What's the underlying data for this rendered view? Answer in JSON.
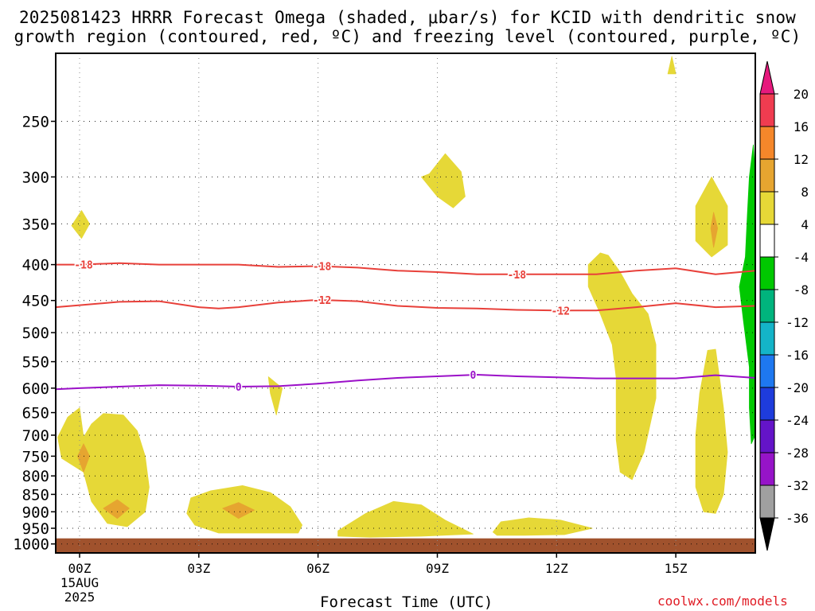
{
  "title_line1": "2025081423 HRRR Forecast Omega (shaded, μbar/s) for KCID with dendritic snow",
  "title_line2": "growth region (contoured, red, ºC) and freezing level (contoured, purple, ºC)",
  "credit": "coolwx.com/models",
  "chart_data": {
    "type": "heatmap",
    "xlabel": "Forecast Time (UTC)",
    "ylabel": "",
    "x_ticks": [
      "00Z",
      "03Z",
      "06Z",
      "09Z",
      "12Z",
      "15Z"
    ],
    "x_tick_hours": [
      0,
      3,
      6,
      9,
      12,
      15
    ],
    "x_date_label": [
      "15AUG",
      "2025"
    ],
    "xlim_hours": [
      -0.6,
      17.0
    ],
    "y_ticks": [
      250,
      300,
      350,
      400,
      450,
      500,
      550,
      600,
      650,
      700,
      750,
      800,
      850,
      900,
      950,
      1000
    ],
    "y_scale": "log",
    "y_reversed": true,
    "ylim_hpa": [
      200,
      1030
    ],
    "grid": "dotted",
    "ground_color": "#a0522d",
    "colorbar": {
      "labels": [
        "20",
        "16",
        "12",
        "8",
        "4",
        "-4",
        "-8",
        "-12",
        "-16",
        "-20",
        "-24",
        "-28",
        "-32",
        "-36"
      ],
      "colors": [
        "#f03c50",
        "#f5872a",
        "#e6a530",
        "#e6d837",
        "#ffffff",
        "#00c800",
        "#00b47d",
        "#14b4c8",
        "#1e78f0",
        "#1e3cdc",
        "#6414c8",
        "#9614c8",
        "#a0a0a0"
      ],
      "top_arrow_color": "#e6197d",
      "bottom_arrow_color": "#000000"
    },
    "contours": [
      {
        "value": -18,
        "label": "-18",
        "color": "#e8403a",
        "points": [
          [
            -0.6,
            400
          ],
          [
            0,
            400
          ],
          [
            1,
            398
          ],
          [
            2,
            400
          ],
          [
            3,
            400
          ],
          [
            4,
            400
          ],
          [
            5,
            403
          ],
          [
            6,
            402
          ],
          [
            7,
            404
          ],
          [
            8,
            408
          ],
          [
            9,
            410
          ],
          [
            10,
            413
          ],
          [
            11,
            413
          ],
          [
            12,
            413
          ],
          [
            13,
            413
          ],
          [
            14,
            408
          ],
          [
            15,
            405
          ],
          [
            16,
            413
          ],
          [
            17,
            408
          ]
        ],
        "label_hours": [
          0.1,
          6.1,
          11.0
        ]
      },
      {
        "value": -12,
        "label": "-12",
        "color": "#e8403a",
        "points": [
          [
            -0.6,
            460
          ],
          [
            0,
            457
          ],
          [
            1,
            452
          ],
          [
            2,
            451
          ],
          [
            3,
            460
          ],
          [
            3.5,
            462
          ],
          [
            4,
            460
          ],
          [
            5,
            453
          ],
          [
            6,
            449
          ],
          [
            7,
            451
          ],
          [
            8,
            458
          ],
          [
            9,
            461
          ],
          [
            10,
            462
          ],
          [
            11,
            464
          ],
          [
            12,
            465
          ],
          [
            13,
            465
          ],
          [
            14,
            460
          ],
          [
            15,
            454
          ],
          [
            16,
            460
          ],
          [
            17,
            458
          ]
        ],
        "label_hours": [
          6.1,
          12.1
        ]
      },
      {
        "value": 0,
        "label": "0",
        "color": "#9b10c8",
        "points": [
          [
            -0.6,
            602
          ],
          [
            0,
            600
          ],
          [
            1,
            597
          ],
          [
            2,
            594
          ],
          [
            3,
            595
          ],
          [
            4,
            597
          ],
          [
            5,
            596
          ],
          [
            6,
            591
          ],
          [
            7,
            585
          ],
          [
            8,
            580
          ],
          [
            9,
            577
          ],
          [
            10,
            574
          ],
          [
            11,
            577
          ],
          [
            12,
            579
          ],
          [
            13,
            581
          ],
          [
            14,
            581
          ],
          [
            15,
            581
          ],
          [
            16,
            575
          ],
          [
            17,
            580
          ]
        ],
        "label_hours": [
          4.0,
          9.9
        ]
      }
    ],
    "omega_regions": [
      {
        "value_range": [
          4,
          8
        ],
        "color": "#e6d837",
        "points": [
          [
            0.1,
            705
          ],
          [
            0.3,
            675
          ],
          [
            0.6,
            652
          ],
          [
            1.1,
            655
          ],
          [
            1.45,
            690
          ],
          [
            1.65,
            750
          ],
          [
            1.75,
            830
          ],
          [
            1.65,
            900
          ],
          [
            1.2,
            945
          ],
          [
            0.7,
            935
          ],
          [
            0.3,
            870
          ],
          [
            0.1,
            790
          ],
          [
            -0.45,
            755
          ],
          [
            -0.55,
            705
          ],
          [
            -0.3,
            660
          ],
          [
            0,
            640
          ]
        ]
      },
      {
        "value_range": [
          8,
          12
        ],
        "color": "#e6a530",
        "points": [
          [
            0.1,
            720
          ],
          [
            0.25,
            750
          ],
          [
            0.1,
            790
          ],
          [
            -0.05,
            750
          ]
        ]
      },
      {
        "value_range": [
          8,
          12
        ],
        "color": "#e6a530",
        "points": [
          [
            0.6,
            890
          ],
          [
            0.95,
            865
          ],
          [
            1.25,
            890
          ],
          [
            0.95,
            920
          ]
        ]
      },
      {
        "value_range": [
          4,
          8
        ],
        "color": "#e6d837",
        "points": [
          [
            -0.2,
            352
          ],
          [
            0.05,
            335
          ],
          [
            0.25,
            350
          ],
          [
            0.05,
            367
          ]
        ]
      },
      {
        "value_range": [
          4,
          8
        ],
        "color": "#e6d837",
        "points": [
          [
            2.8,
            860
          ],
          [
            3.3,
            840
          ],
          [
            4.1,
            826
          ],
          [
            4.8,
            845
          ],
          [
            5.3,
            885
          ],
          [
            5.6,
            940
          ],
          [
            5.5,
            965
          ],
          [
            4.5,
            965
          ],
          [
            3.5,
            965
          ],
          [
            2.9,
            940
          ],
          [
            2.7,
            905
          ]
        ]
      },
      {
        "value_range": [
          8,
          12
        ],
        "color": "#e6a530",
        "points": [
          [
            3.6,
            890
          ],
          [
            4.0,
            873
          ],
          [
            4.4,
            895
          ],
          [
            4.0,
            920
          ]
        ]
      },
      {
        "value_range": [
          4,
          8
        ],
        "color": "#e6d837",
        "points": [
          [
            4.75,
            578
          ],
          [
            5.1,
            600
          ],
          [
            4.95,
            655
          ],
          [
            4.8,
            610
          ]
        ]
      },
      {
        "value_range": [
          4,
          8
        ],
        "color": "#e6d837",
        "points": [
          [
            6.5,
            958
          ],
          [
            7.2,
            905
          ],
          [
            7.9,
            870
          ],
          [
            8.6,
            880
          ],
          [
            9.2,
            925
          ],
          [
            9.9,
            968
          ],
          [
            8.6,
            975
          ],
          [
            7.3,
            978
          ],
          [
            6.5,
            975
          ]
        ]
      },
      {
        "value_range": [
          4,
          8
        ],
        "color": "#e6d837",
        "points": [
          [
            10.4,
            962
          ],
          [
            10.6,
            930
          ],
          [
            11.3,
            918
          ],
          [
            12.1,
            925
          ],
          [
            12.9,
            950
          ],
          [
            12.2,
            970
          ],
          [
            11.2,
            972
          ],
          [
            10.5,
            972
          ]
        ]
      },
      {
        "value_range": [
          4,
          8
        ],
        "color": "#e6d837",
        "points": [
          [
            8.8,
            297
          ],
          [
            9.2,
            278
          ],
          [
            9.6,
            295
          ],
          [
            9.7,
            320
          ],
          [
            9.4,
            332
          ],
          [
            9.0,
            320
          ],
          [
            8.6,
            300
          ]
        ]
      },
      {
        "value_range": [
          4,
          8
        ],
        "color": "#e6d837",
        "points": [
          [
            13.1,
            385
          ],
          [
            13.3,
            388
          ],
          [
            13.6,
            410
          ],
          [
            13.9,
            440
          ],
          [
            14.3,
            470
          ],
          [
            14.5,
            520
          ],
          [
            14.5,
            620
          ],
          [
            14.2,
            740
          ],
          [
            13.9,
            810
          ],
          [
            13.6,
            790
          ],
          [
            13.5,
            710
          ],
          [
            13.5,
            580
          ],
          [
            13.4,
            520
          ],
          [
            13.1,
            470
          ],
          [
            12.8,
            430
          ],
          [
            12.8,
            400
          ]
        ]
      },
      {
        "value_range": [
          4,
          8
        ],
        "color": "#e6d837",
        "points": [
          [
            15.9,
            300
          ],
          [
            16.3,
            330
          ],
          [
            16.3,
            375
          ],
          [
            15.9,
            390
          ],
          [
            15.5,
            370
          ],
          [
            15.5,
            330
          ]
        ]
      },
      {
        "value_range": [
          8,
          12
        ],
        "color": "#e6a530",
        "points": [
          [
            15.95,
            337
          ],
          [
            16.05,
            355
          ],
          [
            15.95,
            378
          ],
          [
            15.88,
            355
          ]
        ]
      },
      {
        "value_range": [
          4,
          8
        ],
        "color": "#e6d837",
        "points": [
          [
            15.8,
            530
          ],
          [
            16.0,
            528
          ],
          [
            16.1,
            580
          ],
          [
            16.2,
            640
          ],
          [
            16.3,
            740
          ],
          [
            16.2,
            850
          ],
          [
            16.0,
            905
          ],
          [
            15.7,
            900
          ],
          [
            15.5,
            830
          ],
          [
            15.5,
            700
          ],
          [
            15.6,
            610
          ]
        ]
      },
      {
        "value_range": [
          4,
          8
        ],
        "color": "#e6d837",
        "points": [
          [
            14.9,
            202
          ],
          [
            15.0,
            214
          ],
          [
            14.8,
            214
          ]
        ]
      },
      {
        "value_range": [
          -8,
          -4
        ],
        "color": "#00c800",
        "points": [
          [
            17.0,
            300
          ],
          [
            17.0,
            700
          ],
          [
            16.9,
            720
          ],
          [
            16.85,
            640
          ],
          [
            16.85,
            560
          ],
          [
            16.7,
            480
          ],
          [
            16.6,
            430
          ],
          [
            16.75,
            390
          ],
          [
            16.8,
            340
          ],
          [
            16.85,
            300
          ],
          [
            16.95,
            270
          ]
        ]
      }
    ]
  }
}
